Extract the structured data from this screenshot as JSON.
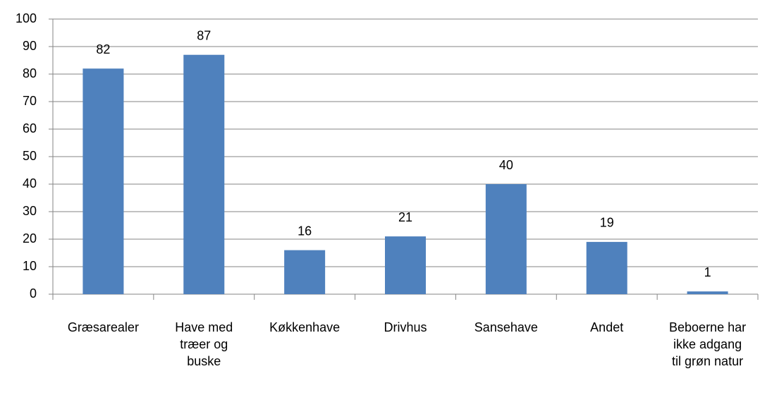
{
  "chart_data": {
    "type": "bar",
    "categories": [
      "Græsarealer",
      "Have med træer og buske",
      "Køkkenhave",
      "Drivhus",
      "Sansehave",
      "Andet",
      "Beboerne har ikke adgang til grøn natur"
    ],
    "values": [
      82,
      87,
      16,
      21,
      40,
      19,
      1
    ],
    "color": "#4f81bd",
    "ylim": [
      0,
      100
    ],
    "yticks": [
      0,
      10,
      20,
      30,
      40,
      50,
      60,
      70,
      80,
      90,
      100
    ],
    "grid": true
  }
}
